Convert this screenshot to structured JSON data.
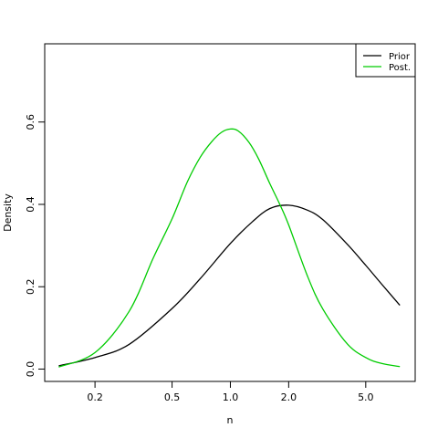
{
  "chart_data": {
    "type": "line",
    "xscale": "log",
    "xlabel": "n",
    "ylabel": "Density",
    "xlim": [
      0.11,
      9.0
    ],
    "ylim": [
      -0.03,
      0.79
    ],
    "xticks": [
      {
        "value": 0.2,
        "label": "0.2"
      },
      {
        "value": 0.5,
        "label": "0.5"
      },
      {
        "value": 1.0,
        "label": "1.0"
      },
      {
        "value": 2.0,
        "label": "2.0"
      },
      {
        "value": 5.0,
        "label": "5.0"
      }
    ],
    "yticks": [
      {
        "value": 0.0,
        "label": "0.0"
      },
      {
        "value": 0.2,
        "label": "0.2"
      },
      {
        "value": 0.4,
        "label": "0.4"
      },
      {
        "value": 0.6,
        "label": "0.6"
      }
    ],
    "grid": false,
    "legend": {
      "placement": "top-right"
    },
    "series": [
      {
        "name": "Prior",
        "color": "#000000",
        "x": [
          0.13,
          0.2,
          0.3,
          0.5,
          0.7,
          1.0,
          1.3,
          1.6,
          2.0,
          2.5,
          3.0,
          4.0,
          5.0,
          6.0,
          7.5
        ],
        "y": [
          0.008,
          0.028,
          0.06,
          0.147,
          0.22,
          0.305,
          0.358,
          0.39,
          0.398,
          0.386,
          0.363,
          0.304,
          0.252,
          0.208,
          0.155
        ]
      },
      {
        "name": "Post.",
        "color": "#00cc00",
        "x": [
          0.13,
          0.2,
          0.3,
          0.4,
          0.5,
          0.6,
          0.7,
          0.8,
          0.9,
          1.0,
          1.1,
          1.25,
          1.4,
          1.6,
          1.8,
          2.0,
          2.5,
          3.0,
          4.0,
          5.0,
          6.0,
          7.5
        ],
        "y": [
          0.005,
          0.04,
          0.14,
          0.27,
          0.365,
          0.455,
          0.515,
          0.552,
          0.575,
          0.583,
          0.578,
          0.55,
          0.51,
          0.45,
          0.4,
          0.35,
          0.226,
          0.146,
          0.062,
          0.028,
          0.014,
          0.006
        ]
      }
    ]
  }
}
